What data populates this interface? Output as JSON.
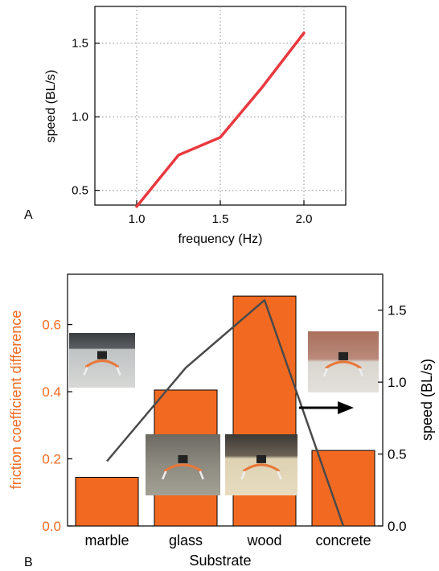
{
  "panel_a": {
    "label": "A",
    "chart_data": {
      "type": "line",
      "x": [
        1.0,
        1.25,
        1.5,
        1.75,
        2.0
      ],
      "series": [
        {
          "values": [
            0.39,
            0.74,
            0.86,
            1.2,
            1.57
          ],
          "color": "#e8393f"
        }
      ],
      "xlabel": "frequency (Hz)",
      "ylabel": "speed (BL/s)",
      "xlim": [
        0.75,
        2.25
      ],
      "ylim": [
        0.4,
        1.75
      ],
      "xticks": [
        1.0,
        1.5,
        2.0
      ],
      "xtick_labels": [
        "1.0",
        "1.5",
        "2.0"
      ],
      "yticks": [
        0.5,
        1.0,
        1.5
      ],
      "ytick_labels": [
        "0.5",
        "1.0",
        "1.5"
      ],
      "grid": true
    }
  },
  "panel_b": {
    "label": "B",
    "chart_data": {
      "type": "bar",
      "categories": [
        "marble",
        "glass",
        "wood",
        "concrete"
      ],
      "bars": {
        "values": [
          0.145,
          0.405,
          0.685,
          0.225
        ],
        "color": "#f26a21"
      },
      "line": {
        "values": [
          0.45,
          1.1,
          1.57,
          0.0
        ],
        "color": "#4a4a4a"
      },
      "xlabel": "Substrate",
      "ylabel_left": "friction coefficient difference",
      "ylabel_left_color": "#f26a21",
      "ylabel_right": "speed (BL/s)",
      "ylim_left": [
        0,
        0.75
      ],
      "ylim_right": [
        0,
        1.75
      ],
      "yticks_left": [
        0.0,
        0.2,
        0.4,
        0.6
      ],
      "ytick_labels_left": [
        "0.0",
        "0.2",
        "0.4",
        "0.6"
      ],
      "yticks_right": [
        0.0,
        0.5,
        1.0,
        1.5
      ],
      "ytick_labels_right": [
        "0.0",
        "0.5",
        "1.0",
        "1.5"
      ],
      "grid": false
    }
  }
}
